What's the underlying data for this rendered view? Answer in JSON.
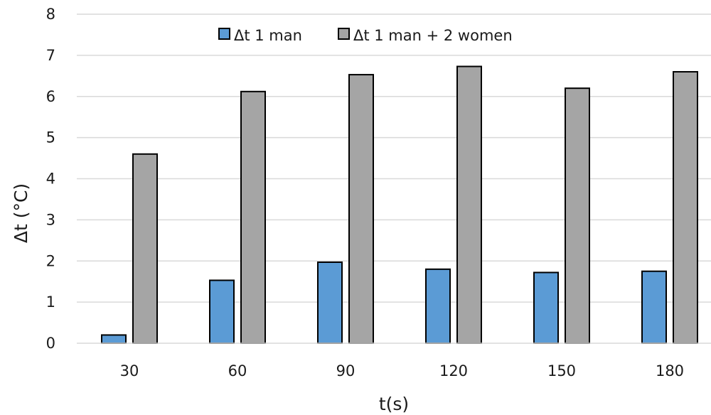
{
  "chart_data": {
    "type": "bar",
    "categories": [
      "30",
      "60",
      "90",
      "120",
      "150",
      "180"
    ],
    "series": [
      {
        "name": "Δt 1 man",
        "values": [
          0.2,
          1.53,
          1.97,
          1.8,
          1.72,
          1.75
        ],
        "color": "#5b9bd5"
      },
      {
        "name": "Δt 1 man + 2 women",
        "values": [
          4.6,
          6.12,
          6.53,
          6.73,
          6.2,
          6.6
        ],
        "color": "#a5a5a5"
      }
    ],
    "xlabel": "t(s)",
    "ylabel": "Δt (°C)",
    "ylim": [
      0,
      8
    ],
    "yticks": [
      "0",
      "1",
      "2",
      "3",
      "4",
      "5",
      "6",
      "7",
      "8"
    ],
    "grid": true,
    "legend_position": "top"
  }
}
